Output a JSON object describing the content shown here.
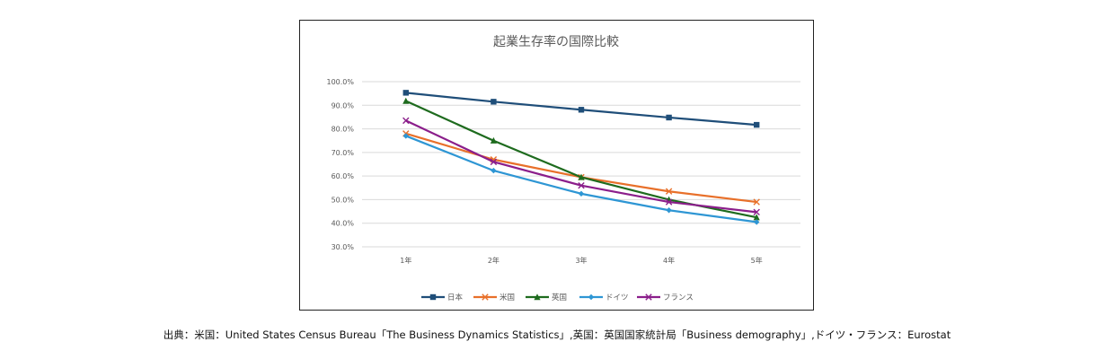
{
  "chart_data": {
    "type": "line",
    "title": "起業生存率の国際比較",
    "categories": [
      "1年",
      "2年",
      "3年",
      "4年",
      "5年"
    ],
    "ylim": [
      30,
      100
    ],
    "yticks": [
      "100.0%",
      "90.0%",
      "80.0%",
      "70.0%",
      "60.0%",
      "50.0%",
      "40.0%",
      "30.0%"
    ],
    "ytick_values": [
      100,
      90,
      80,
      70,
      60,
      50,
      40,
      30
    ],
    "grid": true,
    "legend_position": "bottom",
    "series": [
      {
        "name": "日本",
        "color": "#1F4E79",
        "marker": "square",
        "values": [
          95.3,
          91.5,
          88.1,
          84.8,
          81.7
        ]
      },
      {
        "name": "米国",
        "color": "#E8702A",
        "marker": "x",
        "values": [
          78.0,
          67.0,
          59.5,
          53.5,
          49.0
        ]
      },
      {
        "name": "英国",
        "color": "#1E6B1E",
        "marker": "triangle",
        "values": [
          91.8,
          75.0,
          59.5,
          50.0,
          42.5
        ]
      },
      {
        "name": "ドイツ",
        "color": "#2E96D4",
        "marker": "diamond",
        "values": [
          77.0,
          62.3,
          52.5,
          45.5,
          40.5
        ]
      },
      {
        "name": "フランス",
        "color": "#8B1E8B",
        "marker": "x",
        "values": [
          83.5,
          66.0,
          56.0,
          49.0,
          44.7
        ]
      }
    ]
  },
  "source_note": "出典：米国：United States Census Bureau「The Business Dynamics Statistics」,英国：英国国家統計局「Business demography」,ドイツ・フランス：Eurostat"
}
